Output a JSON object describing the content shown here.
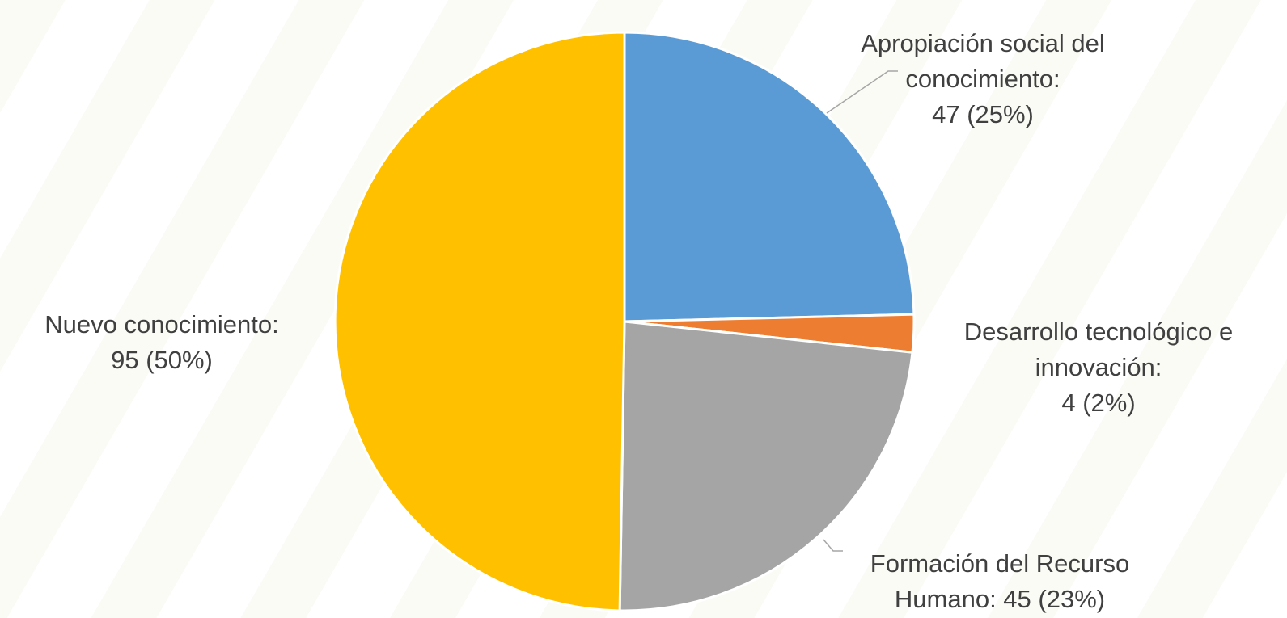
{
  "chart_data": {
    "type": "pie",
    "title": "",
    "categories": [
      "Apropiación social del conocimiento",
      "Desarrollo tecnológico e innovación",
      "Formación del Recurso Humano",
      "Nuevo conocimiento"
    ],
    "values": [
      47,
      4,
      45,
      95
    ],
    "percentages": [
      25,
      2,
      23,
      50
    ],
    "colors": [
      "#5b9bd5",
      "#ed7d31",
      "#a5a5a5",
      "#ffc000"
    ],
    "legend": "none",
    "labels": [
      {
        "lines": [
          "Apropiación social del",
          "conocimiento:",
          "47 (25%)"
        ]
      },
      {
        "lines": [
          "Desarrollo tecnológico e",
          "innovación:",
          "4 (2%)"
        ]
      },
      {
        "lines": [
          "Formación del Recurso",
          "Humano: 45 (23%)"
        ]
      },
      {
        "lines": [
          "Nuevo conocimiento:",
          "95 (50%)"
        ]
      }
    ]
  }
}
